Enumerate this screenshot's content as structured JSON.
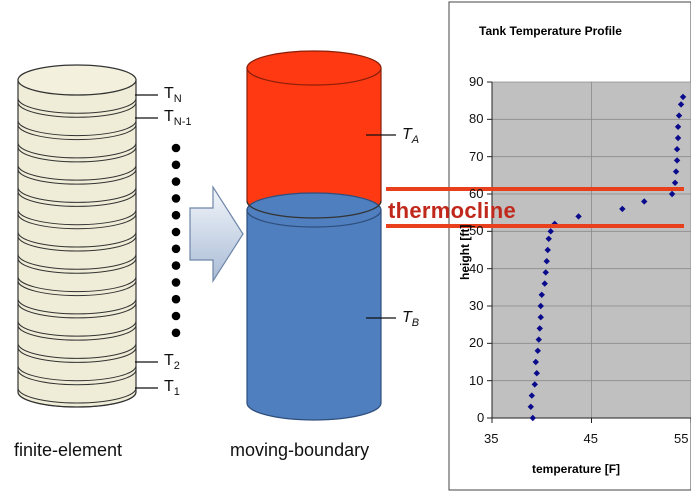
{
  "left_model": {
    "caption": "finite-element",
    "labels": [
      {
        "main": "T",
        "sub": "N"
      },
      {
        "main": "T",
        "sub": "N-1"
      },
      {
        "main": "T",
        "sub": "2"
      },
      {
        "main": "T",
        "sub": "1"
      }
    ]
  },
  "right_model": {
    "caption": "moving-boundary",
    "top_label": {
      "main": "T",
      "sub": "A"
    },
    "bottom_label": {
      "main": "T",
      "sub": "B"
    },
    "top_color": "#ff3a12",
    "bottom_color": "#4f7fbf"
  },
  "thermocline_label": "thermocline",
  "thermocline_color": "#e8401c",
  "chart_data": {
    "type": "scatter",
    "title": "Tank Temperature Profile",
    "xlabel": "temperature [F]",
    "ylabel": "height [ft]",
    "xlim": [
      35,
      55
    ],
    "ylim": [
      0,
      90
    ],
    "xticks": [
      "35",
      "45",
      "55"
    ],
    "yticks": [
      "0",
      "10",
      "20",
      "30",
      "40",
      "50",
      "60",
      "70",
      "80",
      "90"
    ],
    "plot_background": "#c0c0c0",
    "marker_color": "#0a0a8c",
    "points": [
      {
        "x": 39.1,
        "y": 0
      },
      {
        "x": 38.9,
        "y": 3
      },
      {
        "x": 39.0,
        "y": 6
      },
      {
        "x": 39.3,
        "y": 9
      },
      {
        "x": 39.5,
        "y": 12
      },
      {
        "x": 39.4,
        "y": 15
      },
      {
        "x": 39.6,
        "y": 18
      },
      {
        "x": 39.7,
        "y": 21
      },
      {
        "x": 39.8,
        "y": 24
      },
      {
        "x": 39.9,
        "y": 27
      },
      {
        "x": 39.9,
        "y": 30
      },
      {
        "x": 40.0,
        "y": 33
      },
      {
        "x": 40.3,
        "y": 36
      },
      {
        "x": 40.4,
        "y": 39
      },
      {
        "x": 40.5,
        "y": 42
      },
      {
        "x": 40.6,
        "y": 45
      },
      {
        "x": 40.7,
        "y": 48
      },
      {
        "x": 40.9,
        "y": 50
      },
      {
        "x": 41.3,
        "y": 52
      },
      {
        "x": 43.7,
        "y": 54
      },
      {
        "x": 48.1,
        "y": 56
      },
      {
        "x": 50.3,
        "y": 58
      },
      {
        "x": 53.1,
        "y": 60
      },
      {
        "x": 53.4,
        "y": 63
      },
      {
        "x": 53.5,
        "y": 66
      },
      {
        "x": 53.6,
        "y": 69
      },
      {
        "x": 53.6,
        "y": 72
      },
      {
        "x": 53.7,
        "y": 75
      },
      {
        "x": 53.7,
        "y": 78
      },
      {
        "x": 53.8,
        "y": 81
      },
      {
        "x": 54.0,
        "y": 84
      },
      {
        "x": 54.2,
        "y": 86
      }
    ]
  }
}
